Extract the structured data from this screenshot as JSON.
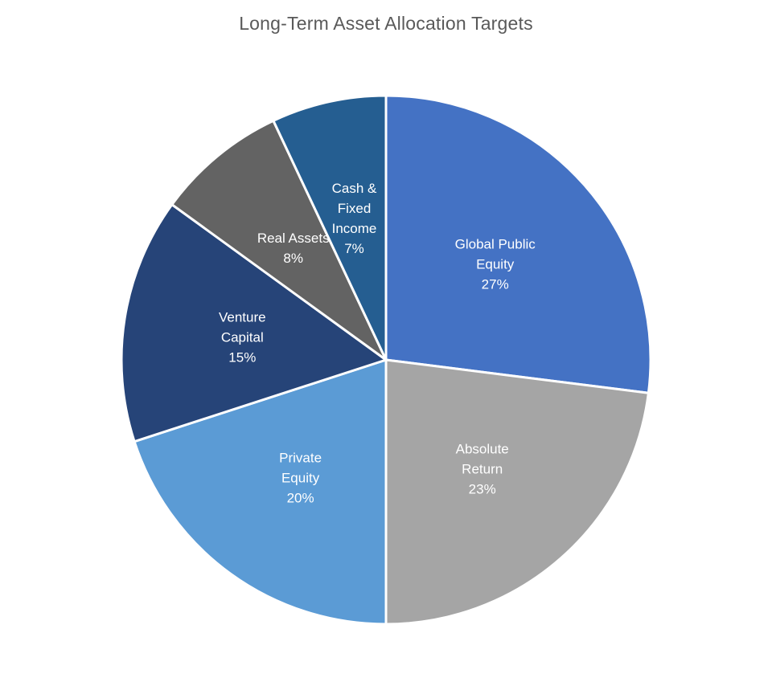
{
  "chart_data": {
    "type": "pie",
    "title": "Long-Term Asset Allocation Targets",
    "start_angle_deg": 0,
    "direction": "clockwise",
    "slices": [
      {
        "label_lines": [
          "Global Public",
          "Equity"
        ],
        "value": 27,
        "value_label": "27%",
        "color": "#4472C4"
      },
      {
        "label_lines": [
          "Absolute",
          "Return"
        ],
        "value": 23,
        "value_label": "23%",
        "color": "#A5A5A5"
      },
      {
        "label_lines": [
          "Private",
          "Equity"
        ],
        "value": 20,
        "value_label": "20%",
        "color": "#5B9BD5"
      },
      {
        "label_lines": [
          "Venture",
          "Capital"
        ],
        "value": 15,
        "value_label": "15%",
        "color": "#264478"
      },
      {
        "label_lines": [
          "Real Assets"
        ],
        "value": 8,
        "value_label": "8%",
        "color": "#636363"
      },
      {
        "label_lines": [
          "Cash &",
          "Fixed",
          "Income"
        ],
        "value": 7,
        "value_label": "7%",
        "color": "#255E91"
      }
    ]
  }
}
